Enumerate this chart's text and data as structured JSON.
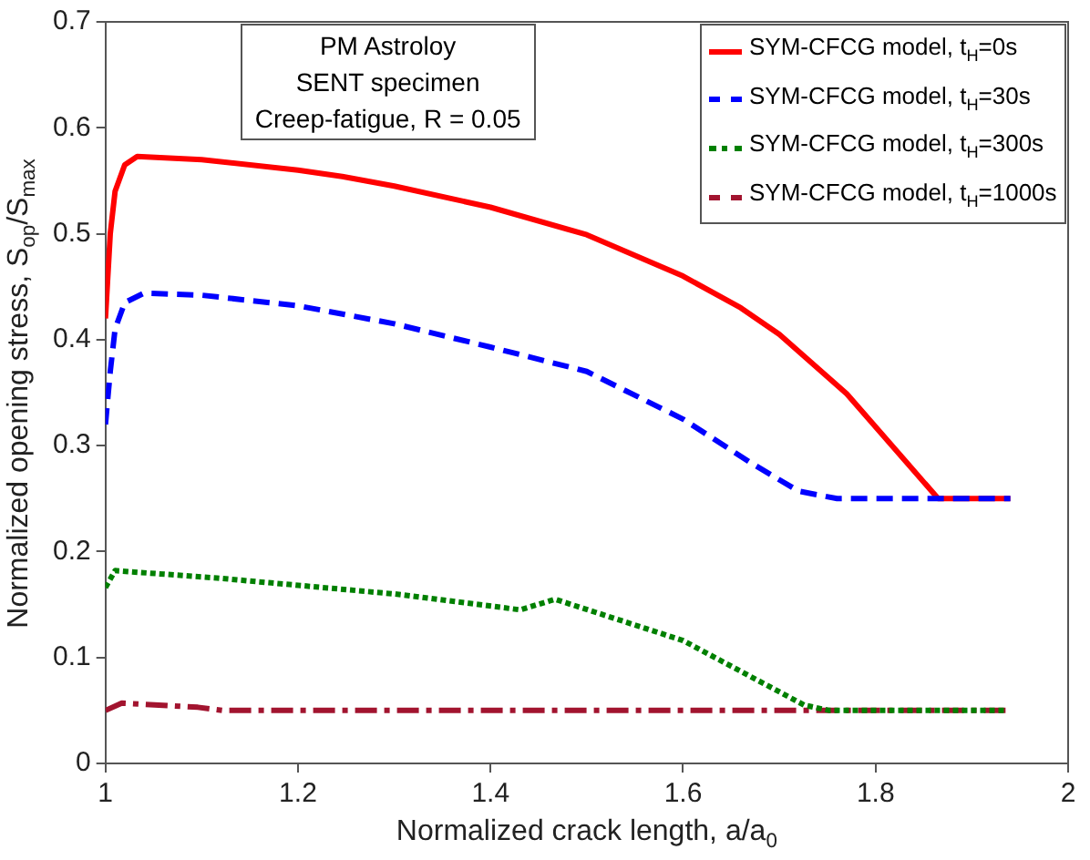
{
  "chart_data": {
    "type": "line",
    "xlabel": "Normalized crack length, a/a$_{0}$",
    "ylabel": "Normalized opening stress, S$_{op}$/S$_{max}$",
    "annotations": [
      "PM Astroloy",
      "SENT specimen",
      "Creep-fatigue, R = 0.05"
    ],
    "xlim": [
      1,
      2
    ],
    "xticks": [
      1,
      1.2,
      1.4,
      1.6,
      1.8,
      2
    ],
    "ylim": [
      0,
      0.7
    ],
    "yticks": [
      0,
      0.1,
      0.2,
      0.3,
      0.4,
      0.5,
      0.6,
      0.7
    ],
    "grid": false,
    "legend": "top right",
    "marker": "none",
    "series": [
      {
        "name": "SYM-CFCG model, t$_{H}$=0s",
        "color": "#ff0000",
        "line_style": "solid",
        "x": [
          1,
          1.005,
          1.01,
          1.02,
          1.033,
          1.1,
          1.2,
          1.246,
          1.3,
          1.4,
          1.5,
          1.6,
          1.66,
          1.7,
          1.77,
          1.865,
          1.94
        ],
        "values": [
          0.42,
          0.5,
          0.54,
          0.565,
          0.573,
          0.57,
          0.56,
          0.554,
          0.545,
          0.525,
          0.499,
          0.46,
          0.43,
          0.405,
          0.349,
          0.25,
          0.25
        ]
      },
      {
        "name": "SYM-CFCG model, t$_{H}$=30s",
        "color": "#0000ff",
        "line_style": "dashed",
        "x": [
          1,
          1.005,
          1.01,
          1.02,
          1.04,
          1.1,
          1.2,
          1.3,
          1.4,
          1.5,
          1.6,
          1.67,
          1.72,
          1.76,
          1.94
        ],
        "values": [
          0.32,
          0.37,
          0.41,
          0.435,
          0.444,
          0.442,
          0.432,
          0.415,
          0.393,
          0.37,
          0.325,
          0.284,
          0.257,
          0.25,
          0.25
        ]
      },
      {
        "name": "SYM-CFCG model, t$_{H}$=300s",
        "color": "#008000",
        "line_style": "dotted",
        "x": [
          1,
          1.01,
          1.116,
          1.3,
          1.431,
          1.467,
          1.6,
          1.726,
          1.752,
          1.935
        ],
        "values": [
          0.166,
          0.182,
          0.175,
          0.16,
          0.145,
          0.155,
          0.116,
          0.055,
          0.05,
          0.05
        ]
      },
      {
        "name": "SYM-CFCG model, t$_{H}$=1000s",
        "color": "#a2142f",
        "line_style": "dashdot",
        "x": [
          1,
          1.017,
          1.096,
          1.122,
          1.935
        ],
        "values": [
          0.05,
          0.057,
          0.053,
          0.05,
          0.05
        ]
      }
    ]
  }
}
